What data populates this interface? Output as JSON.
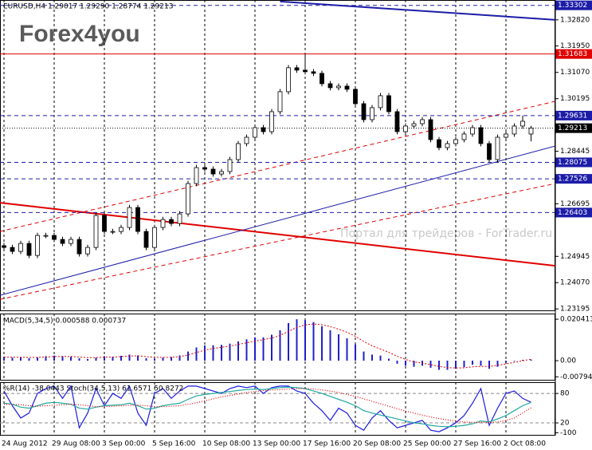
{
  "logo": "Forex4you",
  "watermark": "Портал для трейдеров - ForTrader.ru",
  "chart_data": [
    {
      "type": "candlestick",
      "title": "EURUSD,H4  1.29017 1.29290 1.28774 1.29213",
      "categories": [
        "24 Aug 2012",
        null,
        null,
        null,
        null,
        null,
        "29 Aug 08:00",
        null,
        null,
        null,
        null,
        null,
        "3 Sep 00:00",
        null,
        null,
        null,
        null,
        null,
        "5 Sep 16:00",
        null,
        null,
        null,
        null,
        null,
        "10 Sep 08:00",
        null,
        null,
        null,
        null,
        null,
        "13 Sep 00:00",
        null,
        null,
        null,
        null,
        null,
        "17 Sep 16:00",
        null,
        null,
        null,
        null,
        null,
        "20 Sep 08:00",
        null,
        null,
        null,
        null,
        null,
        "25 Sep 00:00",
        null,
        null,
        null,
        null,
        null,
        "27 Sep 16:00",
        null,
        null,
        null,
        null,
        null,
        "2 Oct 08:00",
        null,
        null,
        null
      ],
      "open": [
        1.253,
        1.25242,
        1.25109,
        1.25375,
        1.24976,
        1.25641,
        1.25641,
        1.25508,
        1.25375,
        1.25508,
        1.25029,
        1.25242,
        1.26305,
        1.25774,
        1.25774,
        1.25907,
        1.26571,
        1.25774,
        1.25242,
        1.25907,
        1.26172,
        1.2604,
        1.26359,
        1.27369,
        1.27901,
        1.27848,
        1.27688,
        1.27768,
        1.28167,
        1.28699,
        1.28911,
        1.2923,
        1.29097,
        1.29762,
        1.30427,
        1.31225,
        1.31145,
        1.31092,
        1.31038,
        1.30693,
        1.3056,
        1.30613,
        1.30507,
        1.30028,
        1.29496,
        1.29895,
        1.30294,
        1.29762,
        1.29097,
        1.29284,
        1.29363,
        1.29496,
        1.28831,
        1.28566,
        1.28699,
        1.28831,
        1.29018,
        1.2923,
        1.28699,
        1.28167,
        1.28911,
        1.29018,
        1.29284,
        1.29017
      ],
      "high": [
        1.2539,
        1.25332,
        1.25465,
        1.25465,
        1.25731,
        1.25731,
        1.25731,
        1.25598,
        1.25598,
        1.25598,
        1.25332,
        1.26395,
        1.26395,
        1.25864,
        1.25997,
        1.26661,
        1.26661,
        1.25864,
        1.25997,
        1.26262,
        1.26262,
        1.26449,
        1.27459,
        1.27991,
        1.27991,
        1.27938,
        1.27858,
        1.28257,
        1.28789,
        1.29001,
        1.2932,
        1.2932,
        1.29852,
        1.30517,
        1.31315,
        1.31315,
        1.31683,
        1.31182,
        1.31128,
        1.30783,
        1.30703,
        1.30703,
        1.30597,
        1.30118,
        1.29985,
        1.30384,
        1.30384,
        1.29852,
        1.29374,
        1.29453,
        1.29586,
        1.29586,
        1.28921,
        1.28789,
        1.28921,
        1.29108,
        1.2932,
        1.2932,
        1.28789,
        1.29001,
        1.29108,
        1.29374,
        1.29631,
        1.2929
      ],
      "low": [
        1.25152,
        1.25019,
        1.25019,
        1.24886,
        1.24886,
        1.25551,
        1.25418,
        1.25285,
        1.25285,
        1.24939,
        1.24939,
        1.25152,
        1.25684,
        1.25684,
        1.25684,
        1.25817,
        1.25684,
        1.25152,
        1.25152,
        1.25817,
        1.2595,
        1.2595,
        1.26269,
        1.27279,
        1.27758,
        1.27598,
        1.27598,
        1.27678,
        1.28077,
        1.28609,
        1.28821,
        1.29007,
        1.29007,
        1.29672,
        1.30337,
        1.31055,
        1.31002,
        1.30948,
        1.30603,
        1.3047,
        1.3047,
        1.30417,
        1.29938,
        1.29406,
        1.29406,
        1.29805,
        1.29672,
        1.29007,
        1.29007,
        1.29194,
        1.29273,
        1.28741,
        1.28476,
        1.28476,
        1.28609,
        1.28741,
        1.28928,
        1.28609,
        1.28075,
        1.28077,
        1.28821,
        1.28928,
        1.29194,
        1.28774
      ],
      "close": [
        1.25242,
        1.25109,
        1.25375,
        1.24976,
        1.25641,
        1.25641,
        1.25508,
        1.25375,
        1.25508,
        1.25029,
        1.25242,
        1.26305,
        1.25774,
        1.25774,
        1.25907,
        1.26571,
        1.25774,
        1.25242,
        1.25907,
        1.26172,
        1.2604,
        1.26359,
        1.27369,
        1.27901,
        1.27848,
        1.27688,
        1.27768,
        1.28167,
        1.28699,
        1.28911,
        1.2923,
        1.29097,
        1.29762,
        1.30427,
        1.31225,
        1.31145,
        1.31092,
        1.31038,
        1.30693,
        1.3056,
        1.30613,
        1.30507,
        1.30028,
        1.29496,
        1.29895,
        1.30294,
        1.29762,
        1.29097,
        1.29284,
        1.29363,
        1.29496,
        1.28831,
        1.28566,
        1.28699,
        1.28831,
        1.29018,
        1.2923,
        1.28699,
        1.28167,
        1.28911,
        1.29018,
        1.29284,
        1.29443,
        1.29213
      ],
      "up_color": "#ffffff",
      "down_color": "#000000",
      "ylim": [
        1.2312,
        1.3348
      ],
      "yticks": [
        {
          "value": 1.3282,
          "label": "1.32820"
        },
        {
          "value": 1.3195,
          "label": "1.31950"
        },
        {
          "value": 1.3107,
          "label": "1.31070"
        },
        1.30195,
        1.28445,
        1.26695,
        1.24945,
        {
          "value": 1.2407,
          "label": "1.24070"
        },
        1.23195
      ],
      "grid": "x",
      "levels": [
        {
          "value": 1.33302,
          "color": "#1c1ca8",
          "style": "dashed"
        },
        {
          "value": 1.31683,
          "color": "#e00000",
          "style": "solid"
        },
        {
          "value": 1.29631,
          "color": "#1c1ca8",
          "style": "dashed"
        },
        {
          "value": 1.29213,
          "color": "#000000",
          "style": "dotted"
        },
        {
          "value": 1.28075,
          "color": "#1c1ca8",
          "style": "dashed"
        },
        {
          "value": 1.27526,
          "color": "#1c1ca8",
          "style": "dashed"
        },
        {
          "value": 1.26403,
          "color": "#1c1ca8",
          "style": "dashed"
        }
      ],
      "trendlines": [
        {
          "x": [
            33,
            65.9
          ],
          "y": [
            1.3343,
            1.3282
          ],
          "color": "#1c1ca8",
          "width": 2,
          "style": "solid"
        },
        {
          "x": [
            -0.48,
            65.9
          ],
          "y": [
            1.26731,
            1.2463
          ],
          "color": "#e00000",
          "width": 2,
          "style": "solid"
        },
        {
          "x": [
            -0.48,
            65.9
          ],
          "y": [
            1.23646,
            1.28619
          ],
          "color": "#1c1ca8",
          "width": 1,
          "style": "solid"
        },
        {
          "x": [
            -0.48,
            65.9
          ],
          "y": [
            1.23513,
            1.27369
          ],
          "color": "#e00000",
          "width": 1,
          "style": "dashed"
        },
        {
          "x": [
            -0.48,
            65.9
          ],
          "y": [
            1.25774,
            1.30108
          ],
          "color": "#e00000",
          "width": 1,
          "style": "dashed"
        }
      ]
    },
    {
      "type": "macd",
      "title": "MACD(5,34,5) 0.000588 0.000737",
      "values": [
        0.002,
        0.0015,
        0.0018,
        0.0012,
        0.0016,
        0.0022,
        0.0025,
        0.0022,
        0.002,
        0.0012,
        0.0008,
        0.0015,
        0.0022,
        0.002,
        0.0024,
        0.003,
        0.0025,
        0.0012,
        0.001,
        0.0015,
        0.0018,
        0.0026,
        0.0045,
        0.0065,
        0.0075,
        0.0076,
        0.0078,
        0.0084,
        0.0095,
        0.0105,
        0.0115,
        0.0115,
        0.0128,
        0.015,
        0.0185,
        0.0204,
        0.02,
        0.019,
        0.017,
        0.015,
        0.013,
        0.011,
        0.008,
        0.0045,
        0.003,
        0.0025,
        0.001,
        -0.0015,
        -0.0025,
        -0.003,
        -0.0025,
        -0.0035,
        -0.0045,
        -0.0045,
        -0.004,
        -0.0032,
        -0.002,
        -0.0025,
        -0.004,
        -0.003,
        -0.001,
        -0.0003,
        0.0004,
        0.000588
      ],
      "color": "#2020c8",
      "signal": [
        0.0018,
        0.0017,
        0.0017,
        0.0016,
        0.0016,
        0.0018,
        0.002,
        0.0021,
        0.0021,
        0.0018,
        0.0015,
        0.0015,
        0.0017,
        0.0018,
        0.002,
        0.0023,
        0.0024,
        0.002,
        0.0017,
        0.0016,
        0.0017,
        0.002,
        0.0028,
        0.004,
        0.0052,
        0.006,
        0.0066,
        0.0072,
        0.008,
        0.0088,
        0.0097,
        0.0103,
        0.0111,
        0.0124,
        0.0144,
        0.0164,
        0.0176,
        0.0181,
        0.0177,
        0.0168,
        0.0155,
        0.014,
        0.012,
        0.0095,
        0.0073,
        0.0057,
        0.0041,
        0.0022,
        0.0006,
        -0.0006,
        -0.0012,
        -0.002,
        -0.0028,
        -0.0034,
        -0.0036,
        -0.0035,
        -0.003,
        -0.0028,
        -0.0028,
        -0.0023,
        -0.0016,
        -0.0008,
        0.0,
        0.000737
      ],
      "signal_color": "#e00000",
      "ylim": [
        -0.0098,
        0.0232
      ],
      "yticks": [
        0.020413,
        {
          "value": 0,
          "label": "0.00"
        },
        -0.00794
      ],
      "grid": "x"
    },
    {
      "type": "oscillator",
      "title": "%R(14) -38.0443  Stoch(34,5,13) 61.6571 50.8272",
      "series": [
        {
          "color": "#1c1ce0",
          "axis": "y2",
          "style": "solid",
          "values": [
            -15,
            -45,
            -70,
            -60,
            -20,
            -10,
            -5,
            -30,
            -5,
            -90,
            -60,
            -10,
            -45,
            -20,
            -30,
            -5,
            -60,
            -85,
            -20,
            -10,
            -30,
            -15,
            -5,
            -5,
            -10,
            -15,
            -20,
            -10,
            -5,
            -8,
            -5,
            -20,
            -8,
            -5,
            -5,
            -15,
            -20,
            -40,
            -55,
            -75,
            -50,
            -60,
            -85,
            -95,
            -70,
            -55,
            -75,
            -90,
            -85,
            -80,
            -75,
            -95,
            -98,
            -90,
            -80,
            -65,
            -40,
            -10,
            -85,
            -50,
            -20,
            -15,
            -30,
            -38.0443
          ]
        },
        {
          "color": "#20a8a0",
          "style": "solid",
          "values": [
            60,
            58,
            52,
            50,
            55,
            60,
            62,
            60,
            58,
            50,
            48,
            52,
            55,
            56,
            57,
            60,
            55,
            48,
            50,
            55,
            58,
            60,
            68,
            75,
            78,
            80,
            82,
            84,
            86,
            88,
            89,
            88,
            90,
            92,
            93,
            92,
            90,
            85,
            80,
            74,
            68,
            62,
            55,
            45,
            40,
            36,
            32,
            28,
            24,
            20,
            18,
            15,
            13,
            12,
            13,
            15,
            18,
            24,
            22,
            28,
            35,
            45,
            55,
            61.6571
          ]
        },
        {
          "color": "#e00000",
          "style": "dotted",
          "values": [
            58,
            58,
            57,
            55,
            54,
            55,
            56,
            57,
            58,
            57,
            55,
            53,
            53,
            54,
            55,
            56,
            56,
            55,
            53,
            53,
            54,
            55,
            58,
            61,
            65,
            69,
            73,
            76,
            79,
            82,
            84,
            86,
            87,
            88,
            89,
            90,
            90,
            89,
            87,
            85,
            82,
            78,
            74,
            69,
            64,
            59,
            54,
            49,
            44,
            40,
            36,
            32,
            29,
            26,
            24,
            22,
            21,
            21,
            21,
            22,
            25,
            30,
            40,
            50.8272
          ]
        }
      ],
      "ylim": [
        -6,
        103
      ],
      "yticks": [
        20,
        80
      ],
      "y2lim": [
        -106,
        3
      ],
      "y2ticks": [
        -100
      ],
      "grid": "both"
    }
  ]
}
